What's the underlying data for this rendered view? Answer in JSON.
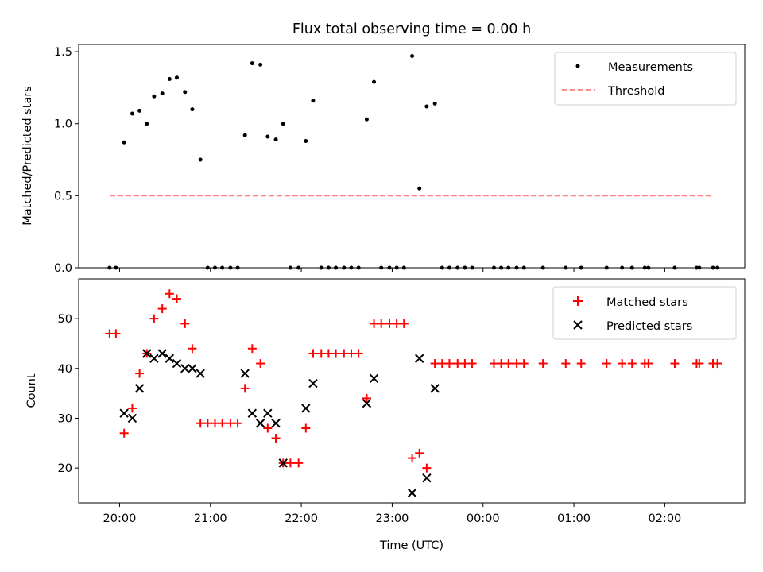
{
  "title": "Flux total observing time = 0.00 h",
  "colors": {
    "matched": "#ff0000",
    "predicted": "#000000",
    "threshold": "#ff7f7f",
    "measurement": "#000000"
  },
  "chart_data": [
    {
      "type": "scatter",
      "title": "Flux total observing time = 0.00 h",
      "xlabel": "",
      "ylabel": "Matched/Predicted stars",
      "ylim": [
        0,
        1.55
      ],
      "yticks": [
        "0.0",
        "0.5",
        "1.0",
        "1.5"
      ],
      "legend_position": "top-right",
      "x_units": "hours after 20:00 UTC (x tick labels shared with lower panel)",
      "series": [
        {
          "name": "Measurements",
          "marker": "dot",
          "x": [
            -0.11,
            -0.04,
            0.05,
            0.14,
            0.22,
            0.3,
            0.38,
            0.47,
            0.55,
            0.63,
            0.72,
            0.8,
            0.89,
            0.97,
            1.05,
            1.13,
            1.22,
            1.3,
            1.38,
            1.46,
            1.55,
            1.63,
            1.72,
            1.8,
            1.88,
            1.97,
            2.05,
            2.13,
            2.22,
            2.3,
            2.38,
            2.47,
            2.55,
            2.63,
            2.72,
            2.8,
            2.88,
            2.97,
            3.05,
            3.13,
            3.22,
            3.3,
            3.38,
            3.47,
            3.55,
            3.63,
            3.72,
            3.8,
            3.88,
            4.12,
            4.2,
            4.28,
            4.37,
            4.45,
            4.66,
            4.91,
            5.08,
            5.36,
            5.53,
            5.64,
            5.78,
            5.82,
            6.11,
            6.35,
            6.38,
            6.53,
            6.58
          ],
          "y": [
            0,
            0,
            0.87,
            1.07,
            1.09,
            1.0,
            1.19,
            1.21,
            1.31,
            1.32,
            1.22,
            1.1,
            0.75,
            0,
            0,
            0,
            0,
            0,
            0.92,
            1.42,
            1.41,
            0.91,
            0.89,
            1.0,
            0,
            0,
            0.88,
            1.16,
            0,
            0,
            0,
            0,
            0,
            0,
            1.03,
            1.29,
            0,
            0,
            0,
            0,
            1.47,
            0.55,
            1.12,
            1.14,
            0,
            0,
            0,
            0,
            0,
            0,
            0,
            0,
            0,
            0,
            0,
            0,
            0,
            0,
            0,
            0,
            0,
            0,
            0,
            0,
            0,
            0,
            0
          ]
        },
        {
          "name": "Threshold",
          "style": "dashed",
          "x": [
            -0.11,
            6.53
          ],
          "y": [
            0.5,
            0.5
          ]
        }
      ]
    },
    {
      "type": "scatter",
      "title": "",
      "xlabel": "Time (UTC)",
      "ylabel": "Count",
      "ylim": [
        13,
        58
      ],
      "yticks": [
        "20",
        "30",
        "40",
        "50"
      ],
      "xticks": [
        "20:00",
        "21:00",
        "22:00",
        "23:00",
        "00:00",
        "01:00",
        "02:00"
      ],
      "xlim_hours_after_2000": [
        -0.45,
        6.88
      ],
      "legend_position": "top-right",
      "series": [
        {
          "name": "Matched stars",
          "marker": "plus",
          "x": [
            -0.11,
            -0.04,
            0.05,
            0.14,
            0.22,
            0.3,
            0.38,
            0.47,
            0.55,
            0.63,
            0.72,
            0.8,
            0.89,
            0.97,
            1.05,
            1.13,
            1.22,
            1.3,
            1.38,
            1.46,
            1.55,
            1.63,
            1.72,
            1.8,
            1.88,
            1.97,
            2.05,
            2.13,
            2.22,
            2.3,
            2.38,
            2.47,
            2.55,
            2.63,
            2.72,
            2.8,
            2.88,
            2.97,
            3.05,
            3.13,
            3.22,
            3.3,
            3.38,
            3.47,
            3.55,
            3.63,
            3.72,
            3.8,
            3.88,
            4.12,
            4.2,
            4.28,
            4.37,
            4.45,
            4.66,
            4.91,
            5.08,
            5.36,
            5.53,
            5.64,
            5.78,
            5.82,
            6.11,
            6.35,
            6.38,
            6.53,
            6.58
          ],
          "y": [
            47,
            47,
            27,
            32,
            39,
            43,
            50,
            52,
            55,
            54,
            49,
            44,
            29,
            29,
            29,
            29,
            29,
            29,
            36,
            44,
            41,
            28,
            26,
            21,
            21,
            21,
            28,
            43,
            43,
            43,
            43,
            43,
            43,
            43,
            34,
            49,
            49,
            49,
            49,
            49,
            22,
            23,
            20,
            41,
            41,
            41,
            41,
            41,
            41,
            41,
            41,
            41,
            41,
            41,
            41,
            41,
            41,
            41,
            41,
            41,
            41,
            41,
            41,
            41,
            41,
            41,
            41
          ]
        },
        {
          "name": "Predicted stars",
          "marker": "x",
          "x": [
            0.05,
            0.14,
            0.22,
            0.3,
            0.38,
            0.47,
            0.55,
            0.63,
            0.72,
            0.8,
            0.89,
            1.38,
            1.46,
            1.55,
            1.63,
            1.72,
            1.8,
            2.05,
            2.13,
            2.72,
            2.8,
            3.22,
            3.3,
            3.38,
            3.47
          ],
          "y": [
            31,
            30,
            36,
            43,
            42,
            43,
            42,
            41,
            40,
            40,
            39,
            39,
            31,
            29,
            31,
            29,
            21,
            32,
            37,
            33,
            38,
            15,
            42,
            18,
            36
          ]
        }
      ]
    }
  ]
}
